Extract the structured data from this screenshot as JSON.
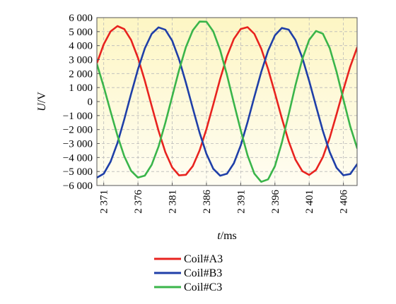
{
  "chart_data": {
    "type": "line",
    "title": "",
    "xlabel": {
      "italic": "t",
      "unit": "/ms"
    },
    "ylabel": {
      "italic": "U",
      "unit": "/V"
    },
    "xlim": [
      2370,
      2408
    ],
    "ylim": [
      -6000,
      6000
    ],
    "x_ticks": [
      2371,
      2376,
      2381,
      2386,
      2391,
      2396,
      2401,
      2406
    ],
    "x_tick_labels": [
      "2 371",
      "2 376",
      "2 381",
      "2 386",
      "2 391",
      "2 396",
      "2 401",
      "2 406"
    ],
    "y_ticks": [
      6000,
      5000,
      4000,
      3000,
      2000,
      1000,
      0,
      -1000,
      -2000,
      -3000,
      -4000,
      -5000,
      -6000
    ],
    "y_tick_labels": [
      "6 000",
      "5 000",
      "4 000",
      "3 000",
      "2 000",
      "1 000",
      "0",
      "−1 000",
      "−2 000",
      "−3 000",
      "−4 000",
      "−5 000",
      "−6 000"
    ],
    "grid": true,
    "legend_position": "bottom-center",
    "series": [
      {
        "name": "Coil#A3",
        "color": "#e8231f",
        "x": [
          2370,
          2371,
          2372,
          2373,
          2374,
          2375,
          2376,
          2377,
          2378,
          2379,
          2380,
          2381,
          2382,
          2383,
          2384,
          2385,
          2386,
          2387,
          2388,
          2389,
          2390,
          2391,
          2392,
          2393,
          2394,
          2395,
          2396,
          2397,
          2398,
          2399,
          2400,
          2401,
          2402,
          2403,
          2404,
          2405,
          2406,
          2407,
          2408
        ],
        "y": [
          2750,
          4096,
          5015,
          5395,
          5185,
          4401,
          3125,
          1494,
          -315,
          -2085,
          -3612,
          -4711,
          -5275,
          -5236,
          -4616,
          -3486,
          -1970,
          -212,
          1613,
          3243,
          4479,
          5188,
          5318,
          4838,
          3789,
          2320,
          604,
          -1184,
          -2838,
          -4149,
          -4970,
          -5244,
          -4886,
          -3967,
          -2586,
          -914,
          852,
          2500,
          3857
        ]
      },
      {
        "name": "Coil#B3",
        "color": "#1f3fa8",
        "x": [
          2370,
          2371,
          2372,
          2373,
          2374,
          2375,
          2376,
          2377,
          2378,
          2379,
          2380,
          2381,
          2382,
          2383,
          2384,
          2385,
          2386,
          2387,
          2388,
          2389,
          2390,
          2391,
          2392,
          2393,
          2394,
          2395,
          2396,
          2397,
          2398,
          2399,
          2400,
          2401,
          2402,
          2403,
          2404,
          2405,
          2406,
          2407,
          2408
        ],
        "y": [
          -5442,
          -5156,
          -4298,
          -2958,
          -1276,
          550,
          2311,
          3801,
          4840,
          5303,
          5133,
          4350,
          3029,
          1340,
          -470,
          -2233,
          -3734,
          -4805,
          -5299,
          -5159,
          -4413,
          -3138,
          -1469,
          343,
          2114,
          3631,
          4734,
          5261,
          5145,
          4407,
          3135,
          1478,
          -327,
          -2096,
          -3616,
          -4723,
          -5268,
          -5177,
          -4475
        ]
      },
      {
        "name": "Coil#C3",
        "color": "#3ab54a",
        "x": [
          2370,
          2371,
          2372,
          2373,
          2374,
          2375,
          2376,
          2377,
          2378,
          2379,
          2380,
          2381,
          2382,
          2383,
          2384,
          2385,
          2386,
          2387,
          2388,
          2389,
          2390,
          2391,
          2392,
          2393,
          2394,
          2395,
          2396,
          2397,
          2398,
          2399,
          2400,
          2401,
          2402,
          2403,
          2404,
          2405,
          2406,
          2407,
          2408
        ],
        "y": [
          2692,
          1060,
          -717,
          -2437,
          -3909,
          -4951,
          -5436,
          -5295,
          -4525,
          -3218,
          -1521,
          361,
          2246,
          3896,
          5086,
          5719,
          5706,
          5018,
          3686,
          1895,
          -107,
          -2050,
          -3849,
          -5154,
          -5739,
          -5560,
          -4614,
          -2952,
          -935,
          1164,
          3034,
          4405,
          5045,
          4848,
          3817,
          2139,
          147,
          -1773,
          -3316
        ]
      }
    ]
  }
}
